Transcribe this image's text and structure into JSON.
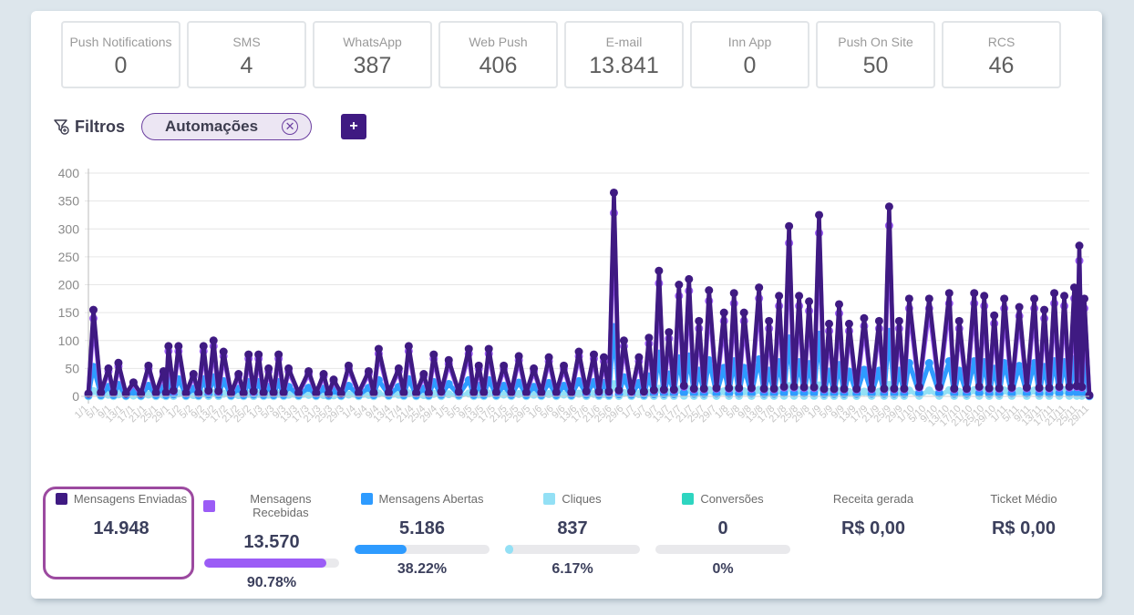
{
  "channels": [
    {
      "label": "Push Notifications",
      "value": "0"
    },
    {
      "label": "SMS",
      "value": "4"
    },
    {
      "label": "WhatsApp",
      "value": "387"
    },
    {
      "label": "Web Push",
      "value": "406"
    },
    {
      "label": "E-mail",
      "value": "13.841"
    },
    {
      "label": "Inn App",
      "value": "0"
    },
    {
      "label": "Push On Site",
      "value": "50"
    },
    {
      "label": "RCS",
      "value": "46"
    }
  ],
  "filters": {
    "title": "Filtros",
    "icon": "filter-icon",
    "chips": [
      {
        "label": "Automações",
        "remove_icon": "close-circle-icon"
      }
    ],
    "add_label": "+"
  },
  "chart_data": {
    "type": "line",
    "title": "",
    "xlabel": "",
    "ylabel": "",
    "ylim": [
      0,
      400
    ],
    "yticks": [
      0,
      50,
      100,
      150,
      200,
      250,
      300,
      350,
      400
    ],
    "grid": true,
    "legend": "bottom",
    "x_range": "1/1 to 30/11 (daily, labels rotated)",
    "x_tick_examples": [
      "1/1",
      "5/1",
      "9/1",
      "13/1",
      "17/1",
      "21/1",
      "25/1",
      "29/1",
      "30/11"
    ],
    "peak_series": {
      "description": "approximate visible daily peaks of Mensagens Enviadas (x as fraction of axis, y in messages)",
      "points": [
        [
          0.005,
          155
        ],
        [
          0.02,
          50
        ],
        [
          0.03,
          60
        ],
        [
          0.045,
          25
        ],
        [
          0.06,
          55
        ],
        [
          0.075,
          45
        ],
        [
          0.08,
          90
        ],
        [
          0.09,
          90
        ],
        [
          0.105,
          40
        ],
        [
          0.115,
          90
        ],
        [
          0.125,
          100
        ],
        [
          0.135,
          80
        ],
        [
          0.15,
          40
        ],
        [
          0.16,
          75
        ],
        [
          0.17,
          75
        ],
        [
          0.18,
          50
        ],
        [
          0.19,
          75
        ],
        [
          0.2,
          50
        ],
        [
          0.22,
          45
        ],
        [
          0.235,
          40
        ],
        [
          0.245,
          30
        ],
        [
          0.26,
          55
        ],
        [
          0.28,
          45
        ],
        [
          0.29,
          85
        ],
        [
          0.31,
          50
        ],
        [
          0.32,
          90
        ],
        [
          0.335,
          40
        ],
        [
          0.345,
          75
        ],
        [
          0.36,
          65
        ],
        [
          0.38,
          85
        ],
        [
          0.39,
          55
        ],
        [
          0.4,
          85
        ],
        [
          0.415,
          55
        ],
        [
          0.43,
          72
        ],
        [
          0.445,
          50
        ],
        [
          0.46,
          70
        ],
        [
          0.475,
          55
        ],
        [
          0.49,
          80
        ],
        [
          0.505,
          75
        ],
        [
          0.515,
          70
        ],
        [
          0.525,
          365
        ],
        [
          0.535,
          100
        ],
        [
          0.55,
          70
        ],
        [
          0.56,
          105
        ],
        [
          0.57,
          225
        ],
        [
          0.58,
          115
        ],
        [
          0.59,
          200
        ],
        [
          0.6,
          210
        ],
        [
          0.61,
          135
        ],
        [
          0.62,
          190
        ],
        [
          0.635,
          150
        ],
        [
          0.645,
          185
        ],
        [
          0.655,
          150
        ],
        [
          0.67,
          195
        ],
        [
          0.68,
          135
        ],
        [
          0.69,
          180
        ],
        [
          0.7,
          305
        ],
        [
          0.71,
          180
        ],
        [
          0.72,
          170
        ],
        [
          0.73,
          325
        ],
        [
          0.74,
          130
        ],
        [
          0.75,
          165
        ],
        [
          0.76,
          130
        ],
        [
          0.775,
          140
        ],
        [
          0.79,
          135
        ],
        [
          0.8,
          340
        ],
        [
          0.81,
          135
        ],
        [
          0.82,
          175
        ],
        [
          0.84,
          175
        ],
        [
          0.86,
          185
        ],
        [
          0.87,
          135
        ],
        [
          0.885,
          185
        ],
        [
          0.895,
          180
        ],
        [
          0.905,
          145
        ],
        [
          0.915,
          175
        ],
        [
          0.93,
          160
        ],
        [
          0.945,
          175
        ],
        [
          0.955,
          155
        ],
        [
          0.965,
          185
        ],
        [
          0.975,
          180
        ],
        [
          0.985,
          195
        ],
        [
          0.99,
          270
        ],
        [
          0.995,
          175
        ]
      ]
    },
    "series": [
      {
        "name": "Mensagens Enviadas",
        "color": "#3f1a82",
        "total": 14948
      },
      {
        "name": "Mensagens Recebidas",
        "color": "#9b5cf6",
        "total": 13570
      },
      {
        "name": "Mensagens Abertas",
        "color": "#2e9bff",
        "total": 5186
      },
      {
        "name": "Cliques",
        "color": "#93e0f5",
        "total": 837
      },
      {
        "name": "Conversões",
        "color": "#2ed5c0",
        "total": 0
      }
    ]
  },
  "stats": [
    {
      "label": "Mensagens Enviadas",
      "value": "14.948",
      "color": "#3f1a82",
      "highlighted": true
    },
    {
      "label": "Mensagens Recebidas",
      "value": "13.570",
      "color": "#9b5cf6",
      "percent": "90.78%",
      "fraction": 0.9078
    },
    {
      "label": "Mensagens Abertas",
      "value": "5.186",
      "color": "#2e9bff",
      "percent": "38.22%",
      "fraction": 0.3822
    },
    {
      "label": "Cliques",
      "value": "837",
      "color": "#93e0f5",
      "percent": "6.17%",
      "fraction": 0.0617
    },
    {
      "label": "Conversões",
      "value": "0",
      "color": "#2ed5c0",
      "percent": "0%",
      "fraction": 0
    },
    {
      "label": "Receita gerada",
      "value": "R$ 0,00"
    },
    {
      "label": "Ticket Médio",
      "value": "R$ 0,00"
    }
  ]
}
